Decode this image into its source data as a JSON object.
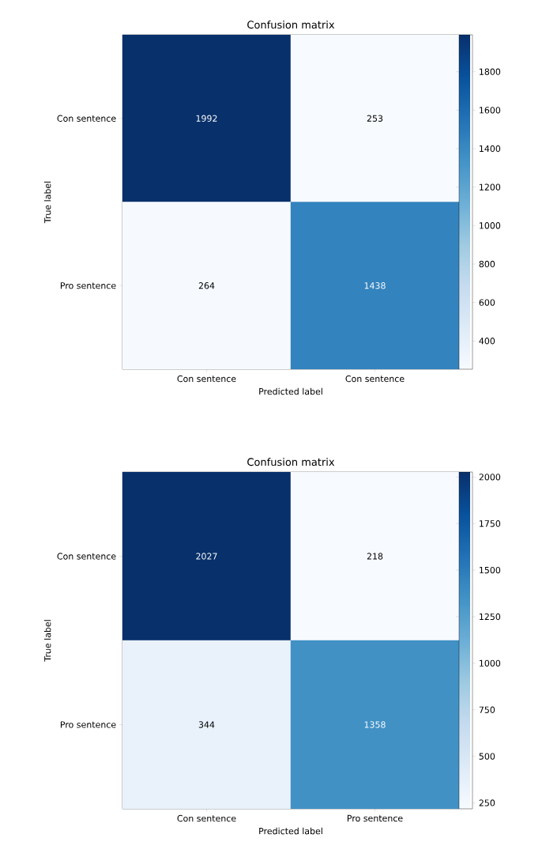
{
  "chart_data": [
    {
      "type": "heatmap",
      "title": "Confusion matrix",
      "xlabel": "Predicted label",
      "ylabel": "True label",
      "categories": [
        "Con sentence",
        "Con sentence"
      ],
      "y_categories": [
        "Con sentence",
        "Pro sentence"
      ],
      "cells": [
        [
          1992,
          253
        ],
        [
          264,
          1438
        ]
      ],
      "data_labels": true,
      "clim": [
        253,
        1992
      ],
      "cticks": [
        400,
        600,
        800,
        1000,
        1200,
        1400,
        1600,
        1800
      ]
    },
    {
      "type": "heatmap",
      "title": "Confusion matrix",
      "xlabel": "Predicted label",
      "ylabel": "True label",
      "categories": [
        "Con sentence",
        "Pro sentence"
      ],
      "y_categories": [
        "Con sentence",
        "Pro sentence"
      ],
      "cells": [
        [
          2027,
          218
        ],
        [
          344,
          1358
        ]
      ],
      "data_labels": true,
      "clim": [
        218,
        2027
      ],
      "cticks": [
        250,
        500,
        750,
        1000,
        1250,
        1500,
        1750,
        2000
      ]
    }
  ]
}
